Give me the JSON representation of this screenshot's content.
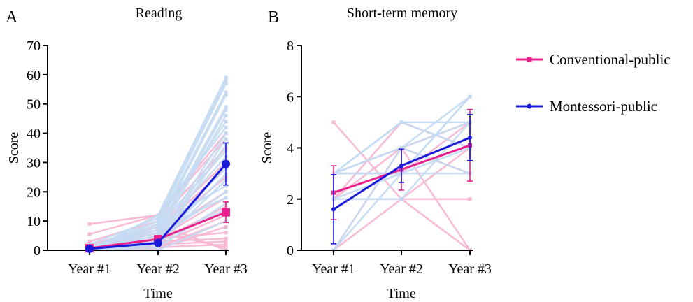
{
  "figure": {
    "panel_a": "A",
    "panel_b": "B"
  },
  "legend": {
    "items": [
      {
        "label": "Conventional-public",
        "color": "#e8218c"
      },
      {
        "label": "Montessori-public",
        "color": "#1a1adb"
      }
    ]
  },
  "colors": {
    "conventional": "#e8218c",
    "montessori": "#1a1adb",
    "conventional_individual": "#f7b6d2",
    "montessori_individual": "#c4daf2"
  },
  "chart_data": [
    {
      "type": "line",
      "title": "Reading",
      "xlabel": "Time",
      "ylabel": "Score",
      "categories": [
        "Year #1",
        "Year #2",
        "Year #3"
      ],
      "ylim": [
        0,
        70
      ],
      "yticks": [
        0,
        10,
        20,
        30,
        40,
        50,
        60,
        70
      ],
      "series": [
        {
          "name": "Conventional-public",
          "values": [
            0.7,
            3.8,
            13.0
          ],
          "error": [
            0.5,
            1.2,
            3.5
          ],
          "marker": "square"
        },
        {
          "name": "Montessori-public",
          "values": [
            0.5,
            2.5,
            29.5
          ],
          "error": [
            0.4,
            1.0,
            7.2
          ],
          "marker": "circle"
        }
      ],
      "individual": {
        "conventional": [
          [
            9,
            12,
            40
          ],
          [
            5.5,
            12,
            38
          ],
          [
            3,
            10,
            35
          ],
          [
            2,
            8,
            30
          ],
          [
            1,
            7,
            28
          ],
          [
            0.5,
            6,
            25
          ],
          [
            0,
            5,
            20
          ],
          [
            0,
            4,
            18
          ],
          [
            1,
            3,
            15
          ],
          [
            0,
            2,
            12
          ],
          [
            0,
            1,
            10
          ],
          [
            0,
            0.5,
            8
          ],
          [
            0,
            4,
            6
          ],
          [
            0,
            3,
            4
          ],
          [
            0,
            2,
            3
          ],
          [
            2,
            1,
            2
          ],
          [
            0,
            6,
            1
          ],
          [
            0,
            9,
            0
          ]
        ],
        "montessori": [
          [
            0,
            12,
            59
          ],
          [
            2,
            11,
            58
          ],
          [
            1,
            10,
            57
          ],
          [
            0,
            9,
            54
          ],
          [
            0,
            8,
            53
          ],
          [
            0,
            7,
            49
          ],
          [
            1,
            6,
            48
          ],
          [
            0,
            5,
            46
          ],
          [
            0,
            10,
            44
          ],
          [
            0,
            12,
            42
          ],
          [
            0,
            4,
            40
          ],
          [
            0,
            3,
            38
          ],
          [
            0,
            2,
            36
          ],
          [
            0,
            8,
            34
          ],
          [
            0,
            6,
            32
          ],
          [
            0,
            1,
            30
          ],
          [
            0,
            5,
            28
          ],
          [
            0,
            3,
            26
          ],
          [
            0,
            2,
            24
          ],
          [
            0,
            9,
            22
          ],
          [
            0,
            4,
            20
          ],
          [
            0,
            7,
            18
          ],
          [
            0,
            1,
            16
          ],
          [
            0,
            3,
            14
          ],
          [
            0,
            0,
            10
          ]
        ]
      }
    },
    {
      "type": "line",
      "title": "Short-term memory",
      "xlabel": "Time",
      "ylabel": "Score",
      "categories": [
        "Year #1",
        "Year #2",
        "Year #3"
      ],
      "ylim": [
        0,
        8
      ],
      "yticks": [
        0,
        2,
        4,
        6,
        8
      ],
      "series": [
        {
          "name": "Conventional-public",
          "values": [
            2.25,
            3.15,
            4.1
          ],
          "error": [
            1.05,
            0.8,
            1.4
          ],
          "marker": "square"
        },
        {
          "name": "Montessori-public",
          "values": [
            1.6,
            3.3,
            4.4
          ],
          "error": [
            1.35,
            0.65,
            0.9
          ],
          "marker": "circle"
        }
      ],
      "individual": {
        "conventional": [
          [
            5,
            2,
            4
          ],
          [
            2,
            2,
            2
          ],
          [
            2,
            5,
            4
          ],
          [
            3,
            4,
            0
          ],
          [
            0,
            4,
            5
          ],
          [
            0,
            2,
            0
          ],
          [
            3,
            3,
            5
          ],
          [
            2,
            4,
            3
          ]
        ],
        "montessori": [
          [
            3,
            5,
            5
          ],
          [
            3,
            4,
            6
          ],
          [
            0,
            4,
            5
          ],
          [
            3,
            3,
            6
          ],
          [
            2,
            3,
            3
          ],
          [
            3,
            5,
            4
          ],
          [
            2,
            2,
            5
          ],
          [
            3,
            3,
            4
          ],
          [
            0,
            3,
            6
          ],
          [
            3,
            4,
            3
          ]
        ]
      }
    }
  ]
}
